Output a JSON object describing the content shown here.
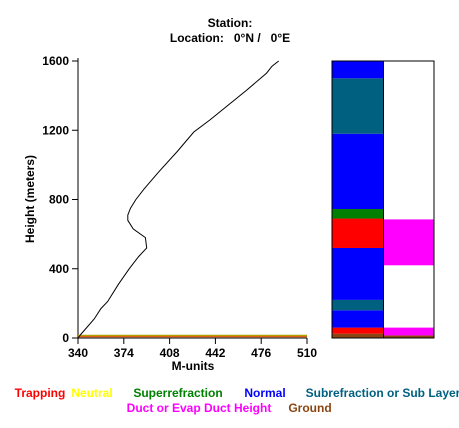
{
  "header": {
    "station_line": "Station:",
    "location_line": "Location:   0°N /   0°E"
  },
  "chart_data": {
    "type": "line",
    "title": "Station:",
    "subtitle": "Location:   0°N /   0°E",
    "xlabel": "M-units",
    "ylabel": "Height (meters)",
    "xlim": [
      340,
      510
    ],
    "ylim": [
      0,
      1600
    ],
    "x_ticks": [
      340,
      374,
      408,
      442,
      476,
      510
    ],
    "y_ticks": [
      0,
      400,
      800,
      1200,
      1600
    ],
    "grid": false,
    "series": [
      {
        "color": "#000000",
        "points": [
          [
            340,
            0
          ],
          [
            342,
            20
          ],
          [
            352,
            110
          ],
          [
            357,
            170
          ],
          [
            362,
            210
          ],
          [
            370,
            310
          ],
          [
            378,
            400
          ],
          [
            385,
            470
          ],
          [
            391,
            520
          ],
          [
            390,
            580
          ],
          [
            381,
            630
          ],
          [
            377,
            680
          ],
          [
            377,
            710
          ],
          [
            379,
            750
          ],
          [
            383,
            800
          ],
          [
            389,
            860
          ],
          [
            400,
            960
          ],
          [
            414,
            1080
          ],
          [
            426,
            1190
          ],
          [
            438,
            1260
          ],
          [
            465,
            1430
          ],
          [
            480,
            1530
          ],
          [
            484,
            1570
          ],
          [
            489,
            1600
          ]
        ]
      }
    ],
    "ground_lines": [
      {
        "height": 8,
        "color": "#e06010"
      },
      {
        "height": 15,
        "color": "#b0a000"
      }
    ],
    "layer_columns": [
      {
        "name": "refractivity",
        "segments": [
          {
            "from": 0,
            "to": 25,
            "class": "Ground"
          },
          {
            "from": 25,
            "to": 60,
            "class": "Trapping"
          },
          {
            "from": 60,
            "to": 160,
            "class": "Normal"
          },
          {
            "from": 160,
            "to": 220,
            "class": "Subrefraction or Sub Layer"
          },
          {
            "from": 220,
            "to": 520,
            "class": "Normal"
          },
          {
            "from": 520,
            "to": 690,
            "class": "Trapping"
          },
          {
            "from": 690,
            "to": 745,
            "class": "Superrefraction"
          },
          {
            "from": 745,
            "to": 1180,
            "class": "Normal"
          },
          {
            "from": 1180,
            "to": 1500,
            "class": "Subrefraction or Sub Layer"
          },
          {
            "from": 1500,
            "to": 1600,
            "class": "Normal"
          }
        ]
      },
      {
        "name": "duct",
        "segments": [
          {
            "from": 0,
            "to": 15,
            "class": "Ground"
          },
          {
            "from": 15,
            "to": 60,
            "class": "Duct or Evap Duct Height"
          },
          {
            "from": 420,
            "to": 685,
            "class": "Duct or Evap Duct Height"
          }
        ]
      }
    ],
    "legend": [
      {
        "label": "Trapping",
        "color": "#ff0000"
      },
      {
        "label": "Neutral",
        "color": "#ffff00"
      },
      {
        "label": "Superrefraction",
        "color": "#008000"
      },
      {
        "label": "Normal",
        "color": "#0000ff"
      },
      {
        "label": "Subrefraction or Sub Layer",
        "color": "#006080"
      },
      {
        "label": "Duct or Evap Duct Height",
        "color": "#ff00ff"
      },
      {
        "label": "Ground",
        "color": "#8b4513"
      }
    ],
    "legend_placement": "bottom"
  }
}
